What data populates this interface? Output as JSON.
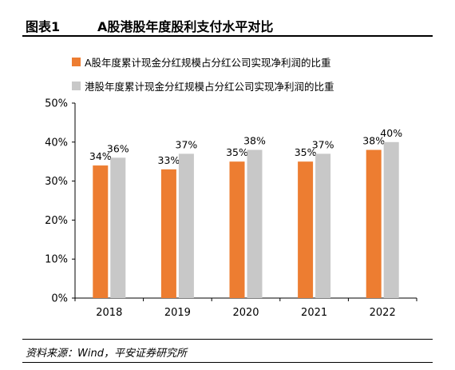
{
  "figure": {
    "number": "图表1",
    "title": "A股港股年度股利支付水平对比"
  },
  "source": "资料来源：Wind，平安证券研究所",
  "colors": {
    "a_share": "#ED7D31",
    "hk_share": "#C8C8C8"
  },
  "chart_data": {
    "type": "bar",
    "categories": [
      "2018",
      "2019",
      "2020",
      "2021",
      "2022"
    ],
    "series": [
      {
        "name": "A股年度累计现金分红规模占分红公司实现净利润的比重",
        "values": [
          34,
          33,
          35,
          35,
          38
        ],
        "labels": [
          "34%",
          "33%",
          "35%",
          "35%",
          "38%"
        ],
        "color": "#ED7D31"
      },
      {
        "name": "港股年度累计现金分红规模占分红公司实现净利润的比重",
        "values": [
          36,
          37,
          38,
          37,
          40
        ],
        "labels": [
          "36%",
          "37%",
          "38%",
          "37%",
          "40%"
        ],
        "color": "#C8C8C8"
      }
    ],
    "yticks": [
      "0%",
      "10%",
      "20%",
      "30%",
      "40%",
      "50%"
    ],
    "ylim": [
      0,
      50
    ],
    "legend_position": "top-left",
    "grid": false
  }
}
